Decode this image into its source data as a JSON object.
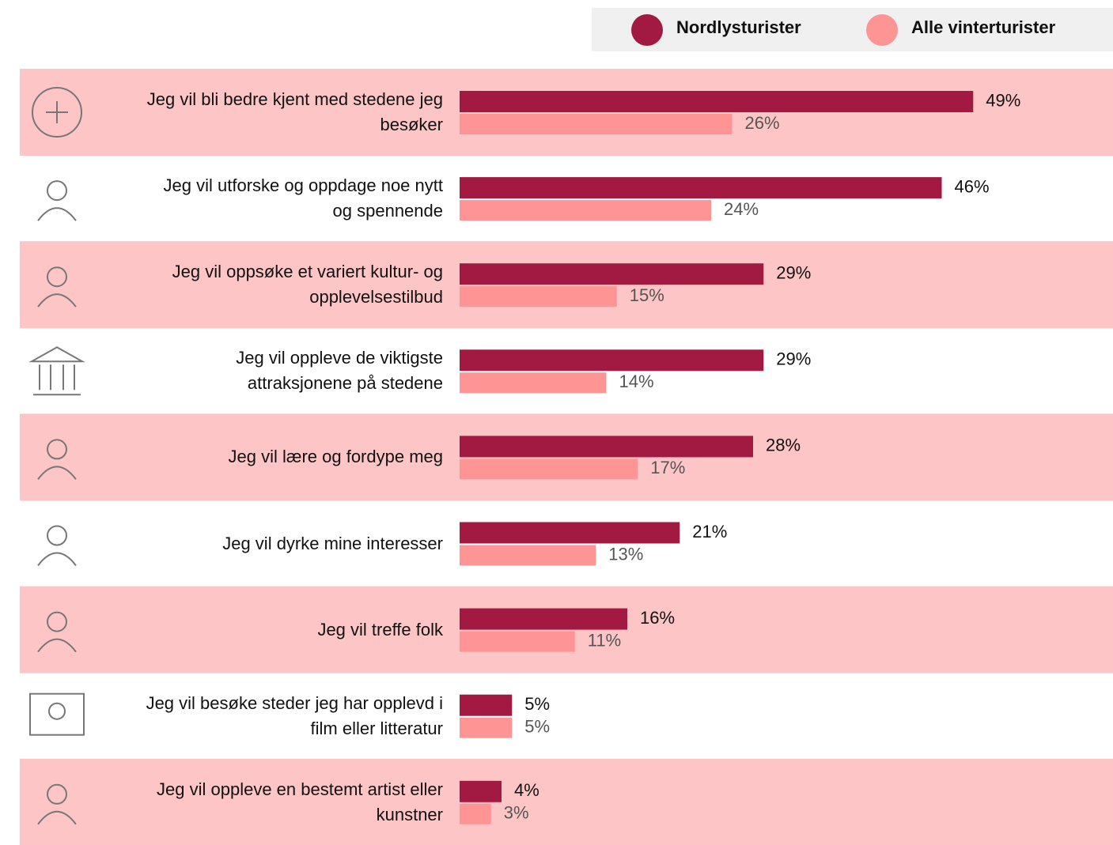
{
  "chart_data": {
    "type": "hbar",
    "categories": [
      "Jeg vil bli bedre kjent med stedene jeg\nbesøker",
      "Jeg vil utforske og oppdage noe nytt\nog spennende",
      "Jeg vil oppsøke et variert kultur- og\nopplevelsestilbud",
      "Jeg vil oppleve de viktigste\nattraksjonene på stedene",
      "Jeg vil lære og fordype meg",
      "Jeg vil dyrke mine interesser",
      "Jeg vil treffe folk",
      "Jeg vil besøke steder jeg har opplevd i\nfilm eller litteratur",
      "Jeg vil oppleve en bestemt artist eller\nkunstner"
    ],
    "series": [
      {
        "name": "Nordlysturister",
        "color": "#a21942",
        "values": [
          49,
          46,
          29,
          29,
          28,
          21,
          16,
          5,
          4
        ],
        "value_labels": [
          "49%",
          "46%",
          "29%",
          "29%",
          "28%",
          "21%",
          "16%",
          "5%",
          "4%"
        ]
      },
      {
        "name": "Alle vinterturister",
        "color": "#fe9494",
        "values": [
          26,
          24,
          15,
          14,
          17,
          13,
          11,
          5,
          3
        ],
        "value_labels": [
          "26%",
          "24%",
          "15%",
          "14%",
          "17%",
          "13%",
          "11%",
          "5%",
          "3%"
        ]
      }
    ],
    "legend": "top-right"
  }
}
